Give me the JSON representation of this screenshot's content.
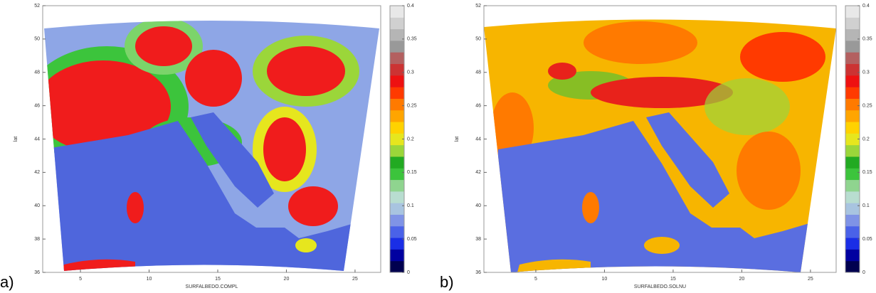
{
  "chart_data": [
    {
      "type": "heatmap",
      "panel_label": "a)",
      "xlabel": "SURFALBEDO.COMPL",
      "ylabel": "lat",
      "xlim": [
        2.25,
        26.87
      ],
      "ylim": [
        36,
        52
      ],
      "xticks": [
        5,
        10,
        15,
        20,
        25
      ],
      "yticks": [
        36,
        38,
        40,
        42,
        44,
        46,
        48,
        50,
        52
      ],
      "colorbar": {
        "lim": [
          0,
          0.4
        ],
        "ticks": [
          0,
          0.05,
          0.1,
          0.15,
          0.2,
          0.25,
          0.3,
          0.35,
          0.4
        ],
        "colors": [
          "#00004f",
          "#0000a0",
          "#1a2ee6",
          "#4a62e8",
          "#7f93e6",
          "#a8c4e0",
          "#b8ddd0",
          "#8fd48f",
          "#3cc43c",
          "#22aa22",
          "#9bd63a",
          "#e6e61e",
          "#ffd200",
          "#ffa500",
          "#ff7a00",
          "#ff3a00",
          "#ee1111",
          "#cc3333",
          "#b36060",
          "#999999",
          "#b5b5b5",
          "#d0d0d0",
          "#e8e8e8"
        ]
      }
    },
    {
      "type": "heatmap",
      "panel_label": "b)",
      "xlabel": "SURFALBEDO.SOLNU",
      "ylabel": "lat",
      "xlim": [
        1.22,
        26.87
      ],
      "ylim": [
        36,
        52
      ],
      "xticks": [
        5,
        10,
        15,
        20,
        25
      ],
      "yticks": [
        36,
        38,
        40,
        42,
        44,
        46,
        48,
        50,
        52
      ],
      "colorbar": {
        "lim": [
          0,
          0.4
        ],
        "ticks": [
          0,
          0.05,
          0.1,
          0.15,
          0.2,
          0.25,
          0.3,
          0.35,
          0.4
        ],
        "colors": [
          "#00004f",
          "#0000a0",
          "#1a2ee6",
          "#4a62e8",
          "#7f93e6",
          "#a8c4e0",
          "#b8ddd0",
          "#8fd48f",
          "#3cc43c",
          "#22aa22",
          "#9bd63a",
          "#e6e61e",
          "#ffd200",
          "#ffa500",
          "#ff7a00",
          "#ff3a00",
          "#ee1111",
          "#cc3333",
          "#b36060",
          "#999999",
          "#b5b5b5",
          "#d0d0d0",
          "#e8e8e8"
        ]
      }
    }
  ]
}
